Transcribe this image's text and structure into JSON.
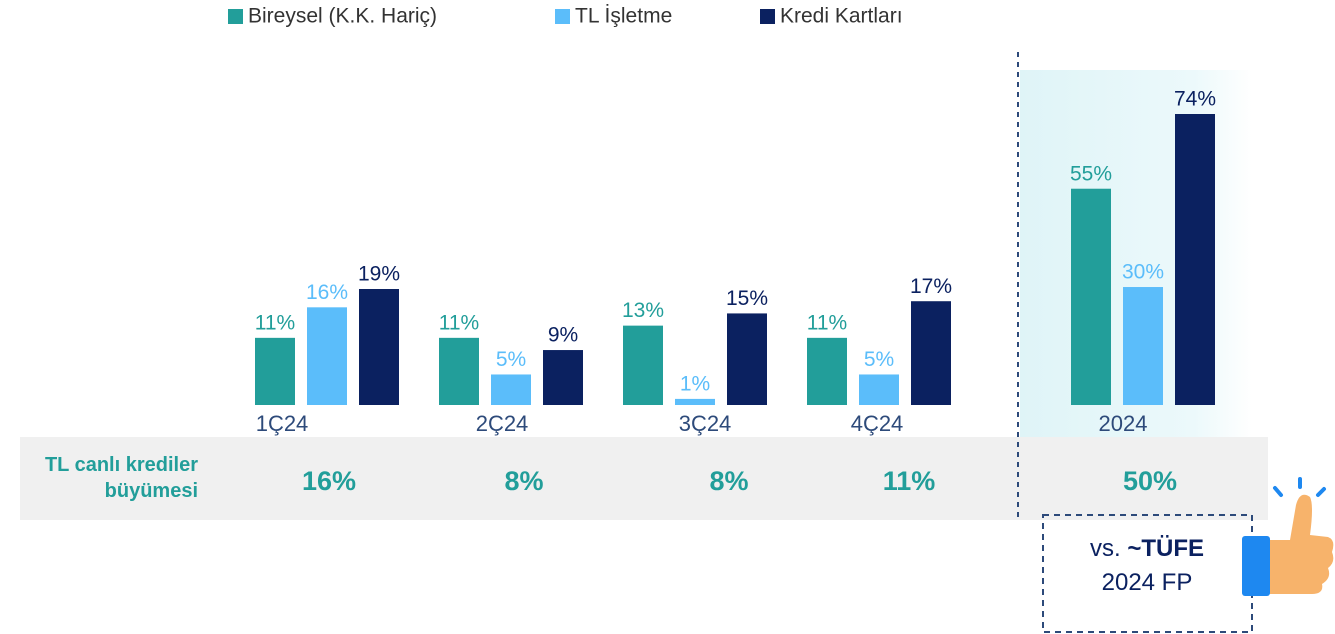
{
  "chart_data": {
    "type": "bar",
    "categories": [
      "1Ç24",
      "2Ç24",
      "3Ç24",
      "4Ç24",
      "2024"
    ],
    "highlight_category": "2024",
    "series": [
      {
        "name": "Bireysel (K.K. Hariç)",
        "color": "#229e9a",
        "values": [
          11,
          11,
          13,
          11,
          55
        ],
        "value_labels": [
          "11%",
          "11%",
          "13%",
          "11%",
          "55%"
        ]
      },
      {
        "name": "TL İşletme",
        "color": "#5bbdfa",
        "values": [
          16,
          5,
          1,
          5,
          30
        ],
        "value_labels": [
          "16%",
          "5%",
          "1%",
          "5%",
          "30%"
        ]
      },
      {
        "name": "Kredi Kartları",
        "color": "#0b2160",
        "values": [
          19,
          9,
          15,
          17,
          74
        ],
        "value_labels": [
          "19%",
          "9%",
          "15%",
          "17%",
          "74%"
        ]
      }
    ],
    "growth": {
      "label": "TL canlı krediler büyümesi",
      "values": [
        16,
        8,
        8,
        11,
        50
      ],
      "value_labels": [
        "16%",
        "8%",
        "8%",
        "11%",
        "50%"
      ],
      "color": "#229e9a"
    },
    "callout": {
      "prefix": "vs.",
      "emphasis": "~TÜFE",
      "line2": "2024 FP"
    }
  }
}
